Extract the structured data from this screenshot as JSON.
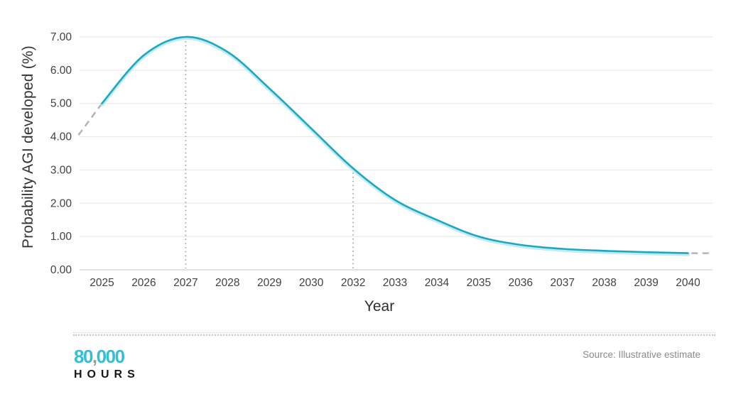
{
  "chart_data": {
    "type": "line",
    "title": "",
    "xlabel": "Year",
    "ylabel": "Probability AGI developed (%)",
    "x_tick_labels": [
      "2025",
      "2026",
      "2027",
      "2028",
      "2029",
      "2030",
      "2032",
      "2033",
      "2034",
      "2035",
      "2036",
      "2037",
      "2038",
      "2039",
      "2040"
    ],
    "y_ticks": [
      {
        "label": "0.00",
        "value": 0
      },
      {
        "label": "1.00",
        "value": 1
      },
      {
        "label": "2.00",
        "value": 2
      },
      {
        "label": "3.00",
        "value": 3
      },
      {
        "label": "4.00",
        "value": 4
      },
      {
        "label": "5.00",
        "value": 5
      },
      {
        "label": "6.00",
        "value": 6
      },
      {
        "label": "7.00",
        "value": 7
      }
    ],
    "ylim": [
      0,
      7
    ],
    "grid": "horizontal",
    "legend_position": "none",
    "series": [
      {
        "name": "Probability AGI developed (%)",
        "style": "smooth-solid",
        "categories": [
          "2025",
          "2026",
          "2027",
          "2028",
          "2029",
          "2030",
          "2032",
          "2033",
          "2034",
          "2035",
          "2036",
          "2037",
          "2038",
          "2039",
          "2040"
        ],
        "values": [
          5.0,
          6.45,
          7.0,
          6.55,
          5.45,
          4.25,
          3.05,
          2.1,
          1.5,
          1.0,
          0.75,
          0.63,
          0.57,
          0.53,
          0.5
        ]
      }
    ],
    "extrapolations": [
      {
        "name": "dashed-lead-in",
        "style": "dashed",
        "from": {
          "x_index": -0.56,
          "value": 4.05
        },
        "to": {
          "x_index": 0,
          "value": 5.0
        }
      },
      {
        "name": "dashed-lead-out",
        "style": "dashed",
        "from": {
          "x_index": 14.08,
          "value": 0.5
        },
        "to": {
          "x_index": 14.6,
          "value": 0.5
        }
      }
    ],
    "annotations": [
      {
        "type": "dotted-vline",
        "x_label": "2027",
        "x_index": 2,
        "value_top": 7.0
      },
      {
        "type": "dotted-vline",
        "x_label": "2032",
        "x_index": 6,
        "value_top": 3.05
      }
    ]
  },
  "footer": {
    "logo": {
      "top_part1": "80",
      "top_comma": ",",
      "top_part2": "000",
      "bottom": "HOURS"
    },
    "source": "Source: Illustrative estimate"
  },
  "colors": {
    "line": "#1ea8bf",
    "line_glow": "#a9e5ee",
    "grid": "#e5e5e5",
    "axis_line": "#c6c6c6",
    "dashed_segment": "#b4b4b4",
    "dotted_guide": "#9aa0a3",
    "tick_label": "#414141",
    "logo_teal": "#33bfd4"
  }
}
